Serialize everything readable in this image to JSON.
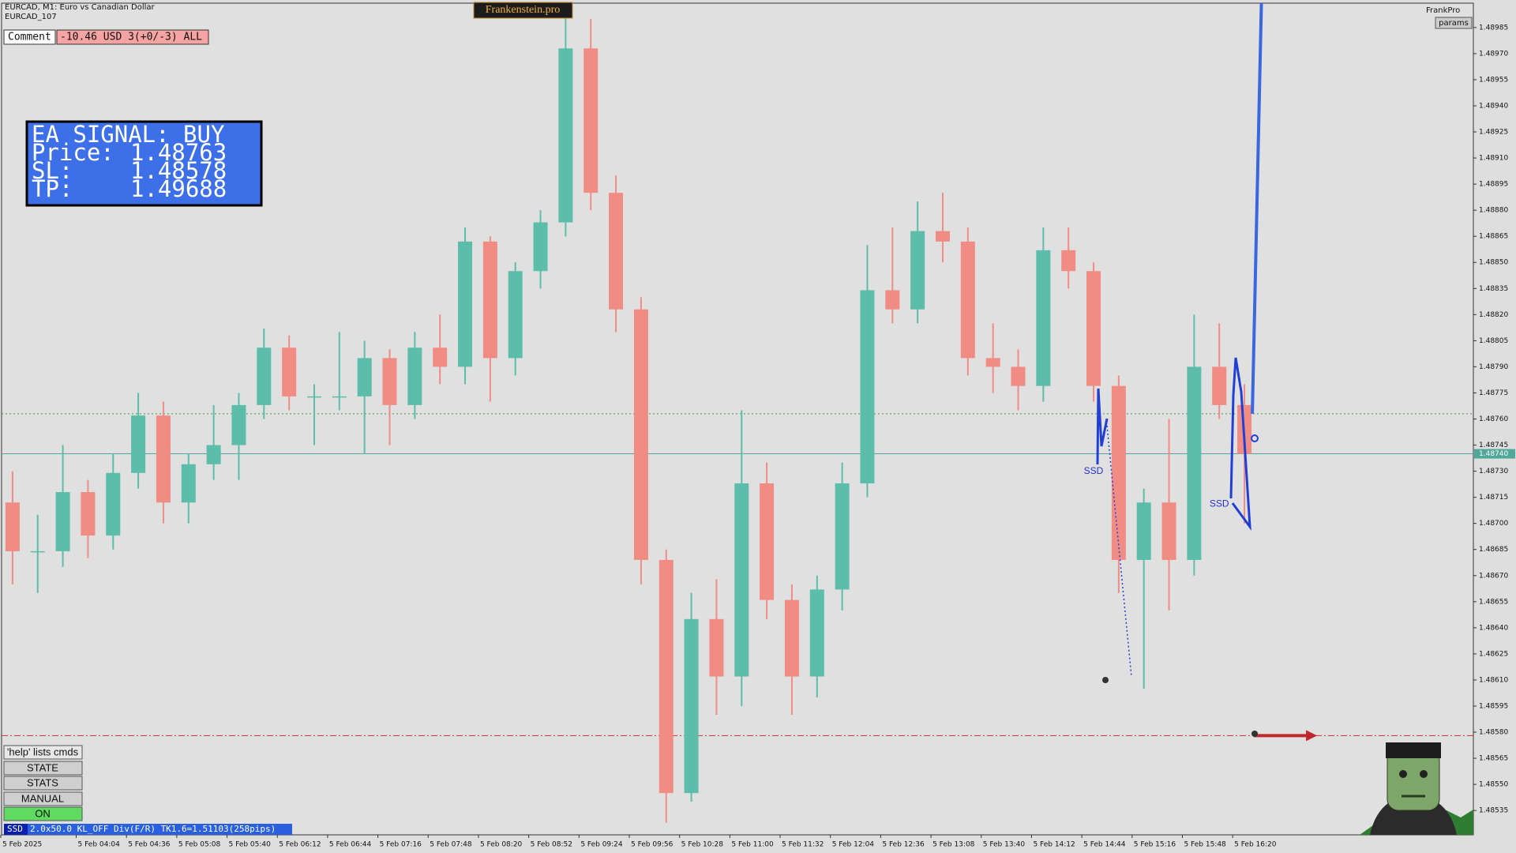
{
  "chart_data": {
    "type": "candlestick",
    "title": "EURCAD, M1: Euro vs Canadian Dollar",
    "subtitle": "EURCAD_107",
    "up_color": "#5cbdaa",
    "down_color": "#f08c84",
    "open": [
      1.48712,
      1.48684,
      1.48684,
      1.48718,
      1.48693,
      1.48729,
      1.48762,
      1.48712,
      1.48734,
      1.48745,
      1.48768,
      1.48801,
      1.48773,
      1.48773,
      1.48773,
      1.48795,
      1.48768,
      1.48801,
      1.4879,
      1.48862,
      1.48795,
      1.48845,
      1.48873,
      1.48973,
      1.4889,
      1.48823,
      1.48679,
      1.48545,
      1.48645,
      1.48612,
      1.48723,
      1.48656,
      1.48612,
      1.48662,
      1.48723,
      1.48834,
      1.48823,
      1.48868,
      1.48862,
      1.48795,
      1.4879,
      1.48779,
      1.48857,
      1.48845,
      1.48779,
      1.48679,
      1.48712,
      1.48679,
      1.4879,
      1.48768
    ],
    "high": [
      1.4873,
      1.48705,
      1.48745,
      1.48725,
      1.4874,
      1.48775,
      1.4877,
      1.4874,
      1.48768,
      1.48775,
      1.48812,
      1.48808,
      1.4878,
      1.4881,
      1.48805,
      1.488,
      1.4881,
      1.4882,
      1.4887,
      1.48865,
      1.4885,
      1.4888,
      1.49,
      1.4899,
      1.489,
      1.4883,
      1.48685,
      1.4866,
      1.48668,
      1.48765,
      1.48735,
      1.48665,
      1.4867,
      1.48735,
      1.4886,
      1.4887,
      1.48885,
      1.4889,
      1.4887,
      1.48815,
      1.488,
      1.4887,
      1.4887,
      1.4885,
      1.48785,
      1.4872,
      1.4876,
      1.4882,
      1.48815,
      1.4878
    ],
    "low": [
      1.48665,
      1.4866,
      1.48675,
      1.4868,
      1.48685,
      1.4872,
      1.487,
      1.487,
      1.48725,
      1.48725,
      1.4876,
      1.48765,
      1.48745,
      1.48765,
      1.4874,
      1.48745,
      1.4876,
      1.4878,
      1.4878,
      1.4877,
      1.48785,
      1.48835,
      1.48865,
      1.4888,
      1.4881,
      1.48665,
      1.48528,
      1.4854,
      1.4859,
      1.48595,
      1.48645,
      1.4859,
      1.486,
      1.4865,
      1.48715,
      1.48815,
      1.48815,
      1.4885,
      1.48785,
      1.48775,
      1.48765,
      1.4877,
      1.48835,
      1.4877,
      1.4866,
      1.48605,
      1.4865,
      1.4867,
      1.4876,
      1.487
    ],
    "close": [
      1.48684,
      1.48684,
      1.48718,
      1.48693,
      1.48729,
      1.48762,
      1.48712,
      1.48734,
      1.48745,
      1.48768,
      1.48801,
      1.48773,
      1.48773,
      1.48773,
      1.48795,
      1.48768,
      1.48801,
      1.4879,
      1.48862,
      1.48795,
      1.48845,
      1.48873,
      1.48973,
      1.4889,
      1.48823,
      1.48679,
      1.48545,
      1.48645,
      1.48612,
      1.48723,
      1.48656,
      1.48612,
      1.48662,
      1.48723,
      1.48834,
      1.48823,
      1.48868,
      1.48862,
      1.48795,
      1.4879,
      1.48779,
      1.48857,
      1.48845,
      1.48779,
      1.48679,
      1.48712,
      1.48679,
      1.4879,
      1.48768,
      1.4874
    ],
    "xticks": [
      {
        "value": 0,
        "label": "5 Feb 2025"
      },
      {
        "value": 3,
        "label": "5 Feb 04:04"
      },
      {
        "value": 5,
        "label": "5 Feb 04:36"
      },
      {
        "value": 7,
        "label": "5 Feb 05:08"
      },
      {
        "value": 9,
        "label": "5 Feb 05:40"
      },
      {
        "value": 11,
        "label": "5 Feb 06:12"
      },
      {
        "value": 13,
        "label": "5 Feb 06:44"
      },
      {
        "value": 15,
        "label": "5 Feb 07:16"
      },
      {
        "value": 17,
        "label": "5 Feb 07:48"
      },
      {
        "value": 19,
        "label": "5 Feb 08:20"
      },
      {
        "value": 21,
        "label": "5 Feb 08:52"
      },
      {
        "value": 23,
        "label": "5 Feb 09:24"
      },
      {
        "value": 25,
        "label": "5 Feb 09:56"
      },
      {
        "value": 27,
        "label": "5 Feb 10:28"
      },
      {
        "value": 29,
        "label": "5 Feb 11:00"
      },
      {
        "value": 31,
        "label": "5 Feb 11:32"
      },
      {
        "value": 33,
        "label": "5 Feb 12:04"
      },
      {
        "value": 35,
        "label": "5 Feb 12:36"
      },
      {
        "value": 37,
        "label": "5 Feb 13:08"
      },
      {
        "value": 39,
        "label": "5 Feb 13:40"
      },
      {
        "value": 41,
        "label": "5 Feb 14:12"
      },
      {
        "value": 43,
        "label": "5 Feb 14:44"
      },
      {
        "value": 45,
        "label": "5 Feb 15:16"
      },
      {
        "value": 47,
        "label": "5 Feb 15:48"
      },
      {
        "value": 49,
        "label": "5 Feb 16:20"
      }
    ],
    "ylim": [
      1.48521,
      1.48999
    ],
    "yticks": [
      1.48535,
      {
        "value": 1.4855,
        "label": "1.48550"
      },
      1.48565,
      {
        "value": 1.4858,
        "label": "1.48580"
      },
      1.48595,
      {
        "value": 1.4861,
        "label": "1.48610"
      },
      1.48625,
      {
        "value": 1.4864,
        "label": "1.48640"
      },
      1.48655,
      {
        "value": 1.4867,
        "label": "1.48670"
      },
      1.48685,
      {
        "value": 1.487,
        "label": "1.48700"
      },
      1.48715,
      {
        "value": 1.4873,
        "label": "1.48730"
      },
      1.48745,
      {
        "value": 1.4876,
        "label": "1.48760"
      },
      1.48775,
      {
        "value": 1.4879,
        "label": "1.48790"
      },
      1.48805,
      {
        "value": 1.4882,
        "label": "1.48820"
      },
      1.48835,
      {
        "value": 1.4885,
        "label": "1.48850"
      },
      1.48865,
      {
        "value": 1.4888,
        "label": "1.48880"
      },
      1.48895,
      {
        "value": 1.4891,
        "label": "1.48910"
      },
      1.48925,
      {
        "value": 1.4894,
        "label": "1.48940"
      },
      1.48955,
      {
        "value": 1.4897,
        "label": "1.48970"
      },
      1.48985
    ],
    "bid": {
      "value": 1.4874,
      "label": "1.48740"
    },
    "signal": {
      "title": "EA SIGNAL: BUY",
      "rows": [
        {
          "label": "Price:",
          "value": 1.48763
        },
        {
          "label": "SL:",
          "value": 1.48578
        },
        {
          "label": "TP:",
          "value": 1.49688
        }
      ]
    },
    "annotations": [
      {
        "text": "SSD",
        "x": 43,
        "y": 1.4873
      },
      {
        "text": "SSD",
        "x": 48,
        "y": 1.48711
      }
    ]
  },
  "comment": {
    "label": "Comment",
    "text": "-10.46 USD 3(+0/-3) ALL"
  },
  "brand": "Frankenstein.pro",
  "top_right": {
    "name": "FrankPro",
    "button": "params"
  },
  "buttons": [
    "'help' lists cmds",
    "STATE",
    "STATS",
    "MANUAL",
    "ON"
  ],
  "status_bar": [
    "SSD",
    "2.0x50.0 KL_OFF Div(F/R) TK1.6=1.51103(258pips)"
  ]
}
